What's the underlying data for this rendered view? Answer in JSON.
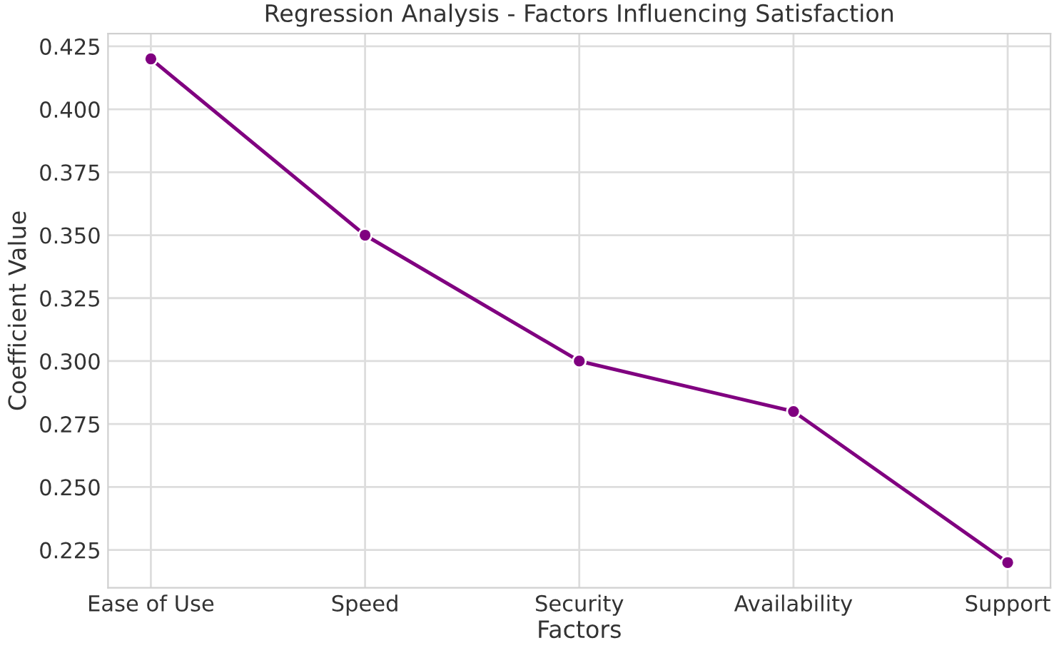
{
  "chart_data": {
    "type": "line",
    "title": "Regression Analysis - Factors Influencing Satisfaction",
    "xlabel": "Factors",
    "ylabel": "Coefficient Value",
    "categories": [
      "Ease of Use",
      "Speed",
      "Security",
      "Availability",
      "Support"
    ],
    "series": [
      {
        "color": "#800080",
        "values": [
          0.42,
          0.35,
          0.3,
          0.28,
          0.22
        ]
      }
    ],
    "ylim": [
      0.21,
      0.43
    ],
    "yticks": [
      {
        "value": 0.225,
        "label": "0.225"
      },
      {
        "value": 0.25,
        "label": "0.250"
      },
      {
        "value": 0.275,
        "label": "0.275"
      },
      {
        "value": 0.3,
        "label": "0.300"
      },
      {
        "value": 0.325,
        "label": "0.325"
      },
      {
        "value": 0.35,
        "label": "0.350"
      },
      {
        "value": 0.375,
        "label": "0.375"
      },
      {
        "value": 0.4,
        "label": "0.400"
      },
      {
        "value": 0.425,
        "label": "0.425"
      }
    ],
    "grid": true,
    "marker": "circle",
    "line_style": "solid"
  }
}
